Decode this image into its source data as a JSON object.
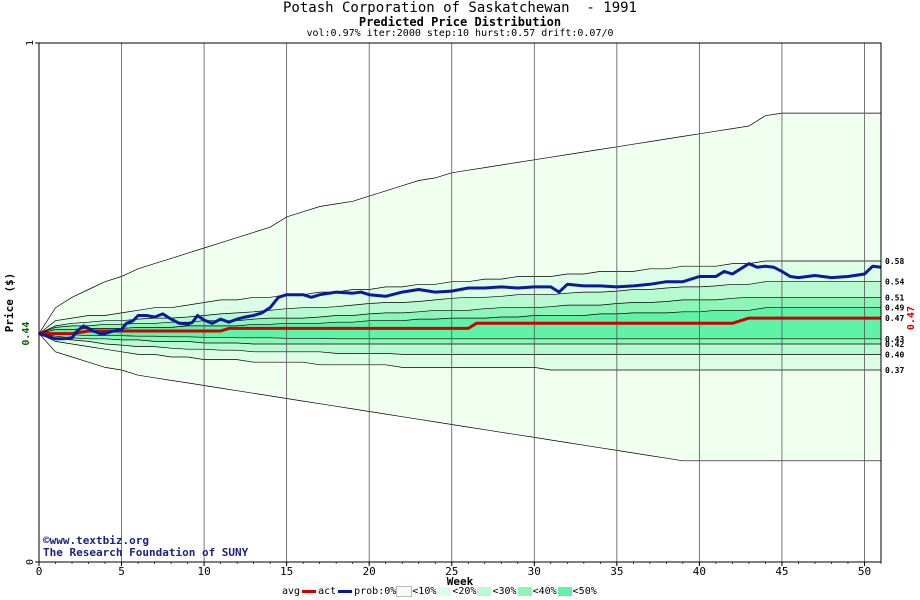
{
  "header": {
    "title": "Potash Corporation of Saskatchewan  - 1991",
    "subtitle": "Predicted Price Distribution",
    "params": "vol:0.97% iter:2000 step:10 hurst:0.57 drift:0.07/0"
  },
  "credits": {
    "site": "©www.textbiz.org",
    "org": "The Research Foundation of SUNY"
  },
  "colors": {
    "band_10": "#f0fff0",
    "band_20": "#dcfde6",
    "band_30": "#b8fad0",
    "band_40": "#8ef5b8",
    "band_50": "#5ff3a8",
    "avg_line": "#cc0000",
    "act_line": "#0a1a9a"
  },
  "legend": {
    "avg": "avg",
    "act": "act",
    "prob": "prob:0%",
    "b10": "<10%",
    "b20": "<20%",
    "b30": "<30%",
    "b40": "<40%",
    "b50": "<50%"
  },
  "chart_data": {
    "type": "area",
    "xlabel": "Week",
    "ylabel": "Price ($)",
    "xlim": [
      0,
      51
    ],
    "ylim": [
      0,
      1
    ],
    "x_ticks": [
      0,
      5,
      10,
      15,
      20,
      25,
      30,
      35,
      40,
      45,
      50
    ],
    "y_ticks": [
      0,
      1
    ],
    "grid": true,
    "start_price_label": "0.44",
    "end_avg_label": "0.47",
    "right_labels": [
      "0.58",
      "0.54",
      "0.51",
      "0.49",
      "0.47",
      "0.43",
      "0.42",
      "0.40",
      "0.37"
    ],
    "weeks": [
      0,
      1,
      2,
      3,
      4,
      5,
      6,
      7,
      8,
      9,
      10,
      11,
      12,
      13,
      14,
      15,
      16,
      17,
      18,
      19,
      20,
      21,
      22,
      23,
      24,
      25,
      26,
      27,
      28,
      29,
      30,
      31,
      32,
      33,
      34,
      35,
      36,
      37,
      38,
      39,
      40,
      41,
      42,
      43,
      44,
      45,
      46,
      47,
      48,
      49,
      50,
      51
    ],
    "bands": [
      {
        "name": "0%",
        "upper": [
          0.44,
          0.49,
          0.51,
          0.525,
          0.54,
          0.55,
          0.565,
          0.575,
          0.585,
          0.595,
          0.605,
          0.615,
          0.625,
          0.635,
          0.645,
          0.665,
          0.675,
          0.685,
          0.69,
          0.695,
          0.705,
          0.715,
          0.725,
          0.735,
          0.74,
          0.75,
          0.755,
          0.76,
          0.765,
          0.77,
          0.775,
          0.78,
          0.785,
          0.79,
          0.795,
          0.8,
          0.805,
          0.81,
          0.815,
          0.82,
          0.825,
          0.83,
          0.835,
          0.84,
          0.86,
          0.865,
          0.865,
          0.865,
          0.865,
          0.865,
          0.865,
          0.865
        ],
        "lower": [
          0.44,
          0.405,
          0.395,
          0.385,
          0.375,
          0.37,
          0.36,
          0.355,
          0.35,
          0.345,
          0.34,
          0.335,
          0.33,
          0.325,
          0.32,
          0.315,
          0.31,
          0.305,
          0.3,
          0.295,
          0.29,
          0.285,
          0.28,
          0.275,
          0.27,
          0.265,
          0.26,
          0.255,
          0.25,
          0.245,
          0.24,
          0.235,
          0.23,
          0.225,
          0.22,
          0.215,
          0.21,
          0.205,
          0.2,
          0.195,
          0.195,
          0.195,
          0.195,
          0.195,
          0.195,
          0.195,
          0.195,
          0.195,
          0.195,
          0.195,
          0.195,
          0.195
        ]
      },
      {
        "name": "10%",
        "upper": [
          0.44,
          0.465,
          0.47,
          0.475,
          0.475,
          0.48,
          0.485,
          0.49,
          0.49,
          0.495,
          0.5,
          0.505,
          0.505,
          0.51,
          0.51,
          0.515,
          0.515,
          0.52,
          0.52,
          0.525,
          0.525,
          0.53,
          0.53,
          0.535,
          0.535,
          0.54,
          0.54,
          0.545,
          0.545,
          0.55,
          0.55,
          0.55,
          0.555,
          0.555,
          0.56,
          0.56,
          0.56,
          0.565,
          0.565,
          0.57,
          0.57,
          0.57,
          0.575,
          0.575,
          0.58,
          0.58,
          0.58,
          0.58,
          0.58,
          0.58,
          0.58,
          0.58
        ],
        "lower": [
          0.44,
          0.425,
          0.42,
          0.415,
          0.41,
          0.405,
          0.4,
          0.4,
          0.395,
          0.395,
          0.39,
          0.39,
          0.39,
          0.385,
          0.385,
          0.385,
          0.385,
          0.38,
          0.38,
          0.38,
          0.38,
          0.38,
          0.375,
          0.375,
          0.375,
          0.375,
          0.375,
          0.375,
          0.375,
          0.375,
          0.375,
          0.37,
          0.37,
          0.37,
          0.37,
          0.37,
          0.37,
          0.37,
          0.37,
          0.37,
          0.37,
          0.37,
          0.37,
          0.37,
          0.37,
          0.37,
          0.37,
          0.37,
          0.37,
          0.37,
          0.37,
          0.37
        ]
      },
      {
        "name": "20%",
        "upper": [
          0.44,
          0.455,
          0.46,
          0.462,
          0.465,
          0.465,
          0.468,
          0.47,
          0.47,
          0.472,
          0.475,
          0.478,
          0.48,
          0.482,
          0.485,
          0.488,
          0.49,
          0.49,
          0.492,
          0.495,
          0.498,
          0.5,
          0.5,
          0.502,
          0.505,
          0.508,
          0.51,
          0.51,
          0.512,
          0.515,
          0.515,
          0.515,
          0.518,
          0.52,
          0.52,
          0.522,
          0.525,
          0.525,
          0.528,
          0.53,
          0.53,
          0.532,
          0.535,
          0.535,
          0.54,
          0.54,
          0.54,
          0.54,
          0.54,
          0.54,
          0.54,
          0.54
        ],
        "lower": [
          0.44,
          0.43,
          0.428,
          0.425,
          0.42,
          0.418,
          0.415,
          0.415,
          0.412,
          0.41,
          0.41,
          0.408,
          0.408,
          0.405,
          0.405,
          0.405,
          0.405,
          0.405,
          0.402,
          0.402,
          0.402,
          0.402,
          0.4,
          0.4,
          0.4,
          0.4,
          0.4,
          0.4,
          0.4,
          0.4,
          0.4,
          0.4,
          0.4,
          0.4,
          0.4,
          0.4,
          0.4,
          0.4,
          0.4,
          0.4,
          0.4,
          0.4,
          0.4,
          0.4,
          0.4,
          0.4,
          0.4,
          0.4,
          0.4,
          0.4,
          0.4,
          0.4
        ]
      },
      {
        "name": "30%",
        "upper": [
          0.44,
          0.452,
          0.455,
          0.455,
          0.458,
          0.458,
          0.46,
          0.46,
          0.462,
          0.462,
          0.465,
          0.465,
          0.465,
          0.468,
          0.47,
          0.47,
          0.47,
          0.472,
          0.475,
          0.475,
          0.478,
          0.48,
          0.48,
          0.482,
          0.485,
          0.485,
          0.485,
          0.488,
          0.49,
          0.49,
          0.49,
          0.492,
          0.495,
          0.495,
          0.495,
          0.498,
          0.5,
          0.5,
          0.502,
          0.505,
          0.505,
          0.505,
          0.508,
          0.51,
          0.51,
          0.51,
          0.51,
          0.51,
          0.51,
          0.51,
          0.51,
          0.51
        ],
        "lower": [
          0.44,
          0.435,
          0.432,
          0.43,
          0.43,
          0.428,
          0.428,
          0.425,
          0.425,
          0.425,
          0.422,
          0.422,
          0.422,
          0.42,
          0.42,
          0.42,
          0.42,
          0.42,
          0.42,
          0.42,
          0.42,
          0.42,
          0.42,
          0.42,
          0.42,
          0.42,
          0.42,
          0.42,
          0.42,
          0.42,
          0.42,
          0.42,
          0.42,
          0.42,
          0.42,
          0.42,
          0.42,
          0.42,
          0.42,
          0.42,
          0.42,
          0.42,
          0.42,
          0.42,
          0.42,
          0.42,
          0.42,
          0.42,
          0.42,
          0.42,
          0.42,
          0.42
        ]
      },
      {
        "name": "40%",
        "upper": [
          0.44,
          0.448,
          0.448,
          0.45,
          0.45,
          0.45,
          0.452,
          0.452,
          0.452,
          0.455,
          0.455,
          0.455,
          0.455,
          0.458,
          0.458,
          0.46,
          0.46,
          0.46,
          0.462,
          0.462,
          0.465,
          0.465,
          0.465,
          0.468,
          0.468,
          0.47,
          0.47,
          0.47,
          0.472,
          0.472,
          0.475,
          0.475,
          0.475,
          0.475,
          0.478,
          0.478,
          0.48,
          0.48,
          0.48,
          0.482,
          0.482,
          0.485,
          0.485,
          0.485,
          0.49,
          0.49,
          0.49,
          0.49,
          0.49,
          0.49,
          0.49,
          0.49
        ],
        "lower": [
          0.44,
          0.438,
          0.438,
          0.436,
          0.436,
          0.436,
          0.435,
          0.435,
          0.434,
          0.434,
          0.433,
          0.433,
          0.432,
          0.432,
          0.432,
          0.431,
          0.431,
          0.431,
          0.43,
          0.43,
          0.43,
          0.43,
          0.43,
          0.43,
          0.43,
          0.43,
          0.43,
          0.43,
          0.43,
          0.43,
          0.43,
          0.43,
          0.43,
          0.43,
          0.43,
          0.43,
          0.43,
          0.43,
          0.43,
          0.43,
          0.43,
          0.43,
          0.43,
          0.43,
          0.43,
          0.43,
          0.43,
          0.43,
          0.43,
          0.43,
          0.43,
          0.43
        ]
      }
    ],
    "avg": [
      [
        0,
        0.44
      ],
      [
        1.2,
        0.44
      ],
      [
        2,
        0.44
      ],
      [
        3,
        0.445
      ],
      [
        6,
        0.445
      ],
      [
        9,
        0.445
      ],
      [
        11,
        0.445
      ],
      [
        11.5,
        0.45
      ],
      [
        20,
        0.45
      ],
      [
        26,
        0.45
      ],
      [
        26.5,
        0.46
      ],
      [
        42,
        0.46
      ],
      [
        43,
        0.47
      ],
      [
        51,
        0.47
      ]
    ],
    "act": [
      [
        0,
        0.44
      ],
      [
        0.5,
        0.435
      ],
      [
        1,
        0.43
      ],
      [
        1.5,
        0.43
      ],
      [
        2,
        0.432
      ],
      [
        2.3,
        0.445
      ],
      [
        2.7,
        0.455
      ],
      [
        3,
        0.45
      ],
      [
        3.3,
        0.445
      ],
      [
        3.7,
        0.44
      ],
      [
        4,
        0.44
      ],
      [
        4.5,
        0.445
      ],
      [
        5,
        0.448
      ],
      [
        5.3,
        0.46
      ],
      [
        5.7,
        0.465
      ],
      [
        6,
        0.475
      ],
      [
        6.5,
        0.475
      ],
      [
        7,
        0.472
      ],
      [
        7.5,
        0.478
      ],
      [
        8,
        0.468
      ],
      [
        8.5,
        0.46
      ],
      [
        9,
        0.458
      ],
      [
        9.3,
        0.462
      ],
      [
        9.6,
        0.475
      ],
      [
        10,
        0.466
      ],
      [
        10.5,
        0.46
      ],
      [
        11,
        0.468
      ],
      [
        11.5,
        0.462
      ],
      [
        12,
        0.468
      ],
      [
        12.5,
        0.472
      ],
      [
        13,
        0.475
      ],
      [
        13.5,
        0.48
      ],
      [
        14,
        0.49
      ],
      [
        14.5,
        0.51
      ],
      [
        15,
        0.515
      ],
      [
        16,
        0.515
      ],
      [
        16.5,
        0.51
      ],
      [
        17,
        0.515
      ],
      [
        18,
        0.52
      ],
      [
        19,
        0.518
      ],
      [
        19.5,
        0.52
      ],
      [
        20,
        0.515
      ],
      [
        21,
        0.512
      ],
      [
        22,
        0.52
      ],
      [
        23,
        0.525
      ],
      [
        24,
        0.52
      ],
      [
        25,
        0.522
      ],
      [
        26,
        0.528
      ],
      [
        27,
        0.528
      ],
      [
        28,
        0.53
      ],
      [
        29,
        0.528
      ],
      [
        30,
        0.53
      ],
      [
        31,
        0.53
      ],
      [
        31.5,
        0.52
      ],
      [
        32,
        0.535
      ],
      [
        33,
        0.532
      ],
      [
        34,
        0.532
      ],
      [
        35,
        0.53
      ],
      [
        36,
        0.532
      ],
      [
        37,
        0.535
      ],
      [
        38,
        0.54
      ],
      [
        39,
        0.54
      ],
      [
        40,
        0.55
      ],
      [
        41,
        0.55
      ],
      [
        41.5,
        0.56
      ],
      [
        42,
        0.555
      ],
      [
        42.5,
        0.565
      ],
      [
        43,
        0.575
      ],
      [
        43.5,
        0.568
      ],
      [
        44,
        0.57
      ],
      [
        44.5,
        0.568
      ],
      [
        45,
        0.56
      ],
      [
        45.5,
        0.55
      ],
      [
        46,
        0.548
      ],
      [
        47,
        0.552
      ],
      [
        48,
        0.548
      ],
      [
        49,
        0.55
      ],
      [
        50,
        0.555
      ],
      [
        50.5,
        0.57
      ],
      [
        51,
        0.568
      ]
    ]
  }
}
